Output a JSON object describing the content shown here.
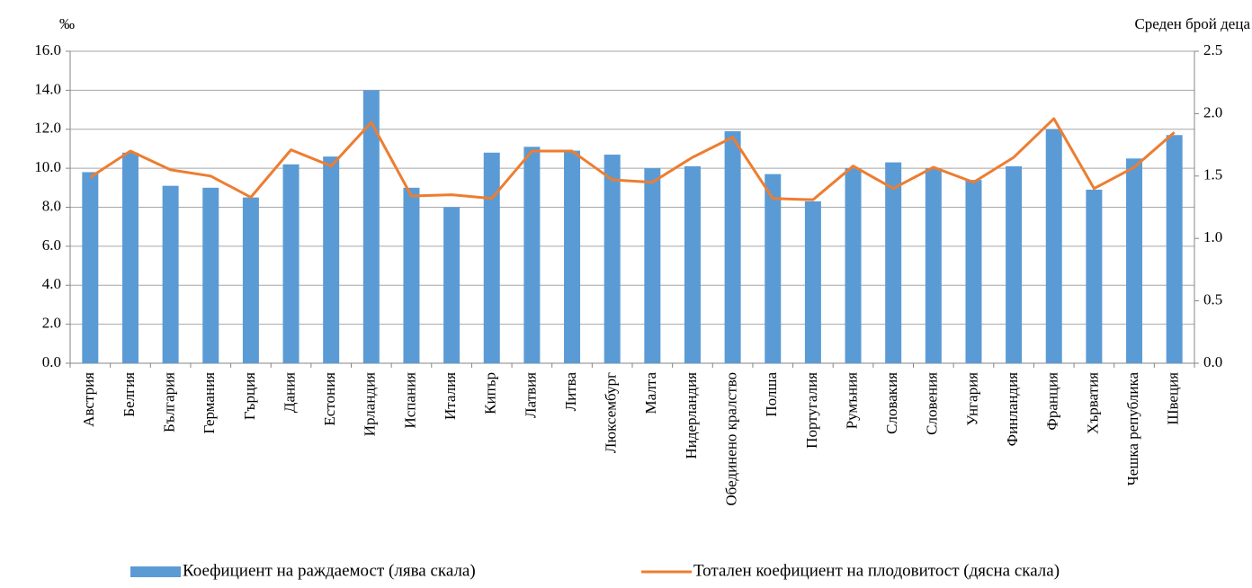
{
  "chart_data": {
    "type": "bar_line",
    "y_unit": "‰",
    "y2_unit": "Среден брой деца",
    "categories": [
      "Австрия",
      "Белгия",
      "България",
      "Германия",
      "Гърция",
      "Дания",
      "Естония",
      "Ирландия",
      "Испания",
      "Италия",
      "Кипър",
      "Латвия",
      "Литва",
      "Люксембург",
      "Малта",
      "Нидерландия",
      "Обединено кралство",
      "Полша",
      "Португалия",
      "Румъния",
      "Словакия",
      "Словения",
      "Унгария",
      "Финландия",
      "Франция",
      "Хърватия",
      "Чешка република",
      "Швеция"
    ],
    "series": [
      {
        "name": "Коефициент на раждаемост (лява скала)",
        "color": "#5b9bd5",
        "type": "bar",
        "values": [
          9.8,
          10.8,
          9.1,
          9.0,
          8.5,
          10.2,
          10.6,
          14.0,
          9.0,
          8.0,
          10.8,
          11.1,
          10.9,
          10.7,
          10.0,
          10.1,
          11.9,
          9.7,
          8.3,
          10.0,
          10.3,
          10.0,
          9.4,
          10.1,
          12.0,
          8.9,
          10.5,
          11.7
        ]
      },
      {
        "name": "Тотален коефициент на плодовитост (дясна скала)",
        "color": "#ed7d31",
        "type": "line",
        "axis": "y2",
        "values": [
          1.49,
          1.7,
          1.55,
          1.5,
          1.33,
          1.71,
          1.58,
          1.93,
          1.34,
          1.35,
          1.32,
          1.7,
          1.7,
          1.47,
          1.45,
          1.65,
          1.81,
          1.32,
          1.31,
          1.58,
          1.4,
          1.57,
          1.45,
          1.65,
          1.96,
          1.4,
          1.57,
          1.85
        ]
      }
    ],
    "ylim": [
      0,
      16
    ],
    "yticks": [
      {
        "value": 0,
        "label": "0.0"
      },
      {
        "value": 2,
        "label": "2.0"
      },
      {
        "value": 4,
        "label": "4.0"
      },
      {
        "value": 6,
        "label": "6.0"
      },
      {
        "value": 8,
        "label": "8.0"
      },
      {
        "value": 10,
        "label": "10.0"
      },
      {
        "value": 12,
        "label": "12.0"
      },
      {
        "value": 14,
        "label": "14.0"
      },
      {
        "value": 16,
        "label": "16.0"
      }
    ],
    "y2lim": [
      0,
      2.5
    ],
    "y2ticks": [
      {
        "value": 0,
        "label": "0.0"
      },
      {
        "value": 0.5,
        "label": "0.5"
      },
      {
        "value": 1,
        "label": "1.0"
      },
      {
        "value": 1.5,
        "label": "1.5"
      },
      {
        "value": 2,
        "label": "2.0"
      },
      {
        "value": 2.5,
        "label": "2.5"
      }
    ],
    "grid": true,
    "legend": "bottom"
  }
}
